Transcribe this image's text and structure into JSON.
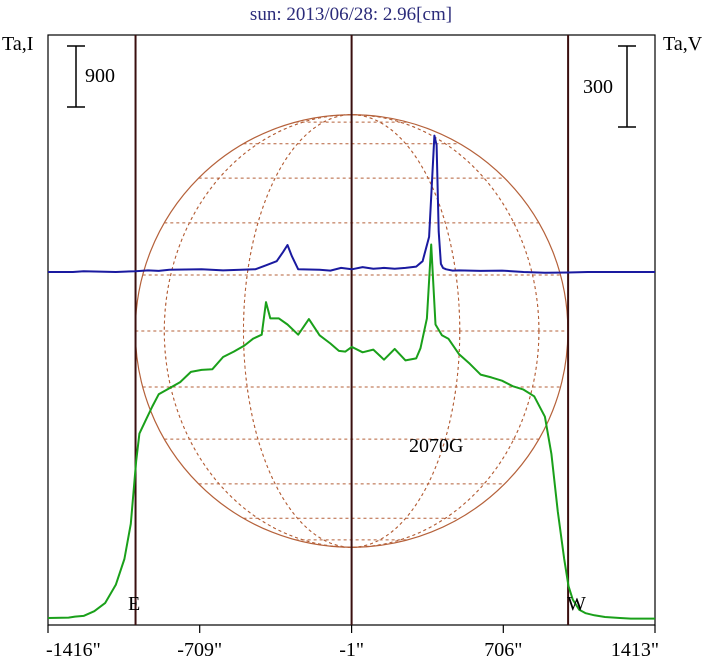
{
  "chart_data": {
    "type": "line",
    "title": "sun: 2013/06/28: 2.96[cm]",
    "left_axis_label": "Ta,I",
    "right_axis_label": "Ta,V",
    "left_scale_bar_label": "900",
    "right_scale_bar_label": "300",
    "annotation": "2070G",
    "east_label": "E",
    "west_label": "W",
    "x_tick_labels": [
      "-1416\"",
      "-709\"",
      "-1\"",
      "706\"",
      "1413\""
    ],
    "x_ticks": [
      -1416,
      -709,
      -1,
      706,
      1413
    ],
    "xlim": [
      -1416,
      1413
    ],
    "limb_lines_arcsec": [
      -1008,
      1008
    ],
    "center_line_arcsec": -1,
    "grid": false,
    "colors": {
      "intensity": "#1aa01a",
      "polarization": "#1a1aa0",
      "disk": "#b5613a",
      "limb_lines": "#3a0f0f",
      "title": "#2b2b7a"
    },
    "series": [
      {
        "name": "Ta,I",
        "axis": "left",
        "x": [
          -1416,
          -1320,
          -1290,
          -1250,
          -1200,
          -1150,
          -1100,
          -1060,
          -1030,
          -1005,
          -990,
          -960,
          -930,
          -900,
          -850,
          -800,
          -750,
          -700,
          -650,
          -600,
          -550,
          -500,
          -460,
          -420,
          -400,
          -380,
          -340,
          -300,
          -250,
          -200,
          -150,
          -100,
          -60,
          -30,
          0,
          50,
          100,
          150,
          200,
          250,
          300,
          320,
          350,
          370,
          390,
          420,
          450,
          500,
          550,
          600,
          650,
          700,
          750,
          800,
          850,
          900,
          930,
          960,
          990,
          1010,
          1030,
          1060,
          1090,
          1130,
          1180,
          1250,
          1300,
          1413
        ],
        "values": [
          30,
          35,
          50,
          60,
          130,
          250,
          520,
          900,
          1420,
          2350,
          2750,
          2950,
          3150,
          3330,
          3420,
          3510,
          3660,
          3690,
          3700,
          3880,
          3960,
          4050,
          4150,
          4210,
          4690,
          4450,
          4450,
          4360,
          4210,
          4440,
          4200,
          4080,
          3970,
          3960,
          4030,
          3950,
          3990,
          3840,
          4000,
          3830,
          3860,
          4010,
          4450,
          5540,
          4360,
          4200,
          4150,
          3920,
          3780,
          3620,
          3580,
          3530,
          3450,
          3400,
          3300,
          3000,
          2450,
          1600,
          900,
          500,
          300,
          150,
          100,
          70,
          45,
          30,
          20,
          20
        ]
      },
      {
        "name": "Ta,V",
        "axis": "right",
        "x": [
          -1416,
          -1300,
          -1250,
          -1100,
          -1008,
          -950,
          -900,
          -850,
          -700,
          -600,
          -450,
          -400,
          -350,
          -320,
          -300,
          -280,
          -250,
          -150,
          -100,
          -50,
          0,
          50,
          100,
          150,
          200,
          250,
          300,
          330,
          360,
          385,
          395,
          405,
          415,
          425,
          440,
          470,
          500,
          600,
          700,
          800,
          900,
          1008,
          1100,
          1413
        ],
        "values": [
          0,
          0,
          3,
          0,
          3,
          6,
          4,
          8,
          10,
          6,
          10,
          25,
          40,
          75,
          100,
          60,
          10,
          8,
          5,
          15,
          10,
          18,
          12,
          15,
          12,
          15,
          20,
          40,
          130,
          505,
          470,
          150,
          30,
          15,
          10,
          5,
          6,
          4,
          5,
          0,
          -3,
          -2,
          0,
          0
        ]
      }
    ]
  }
}
